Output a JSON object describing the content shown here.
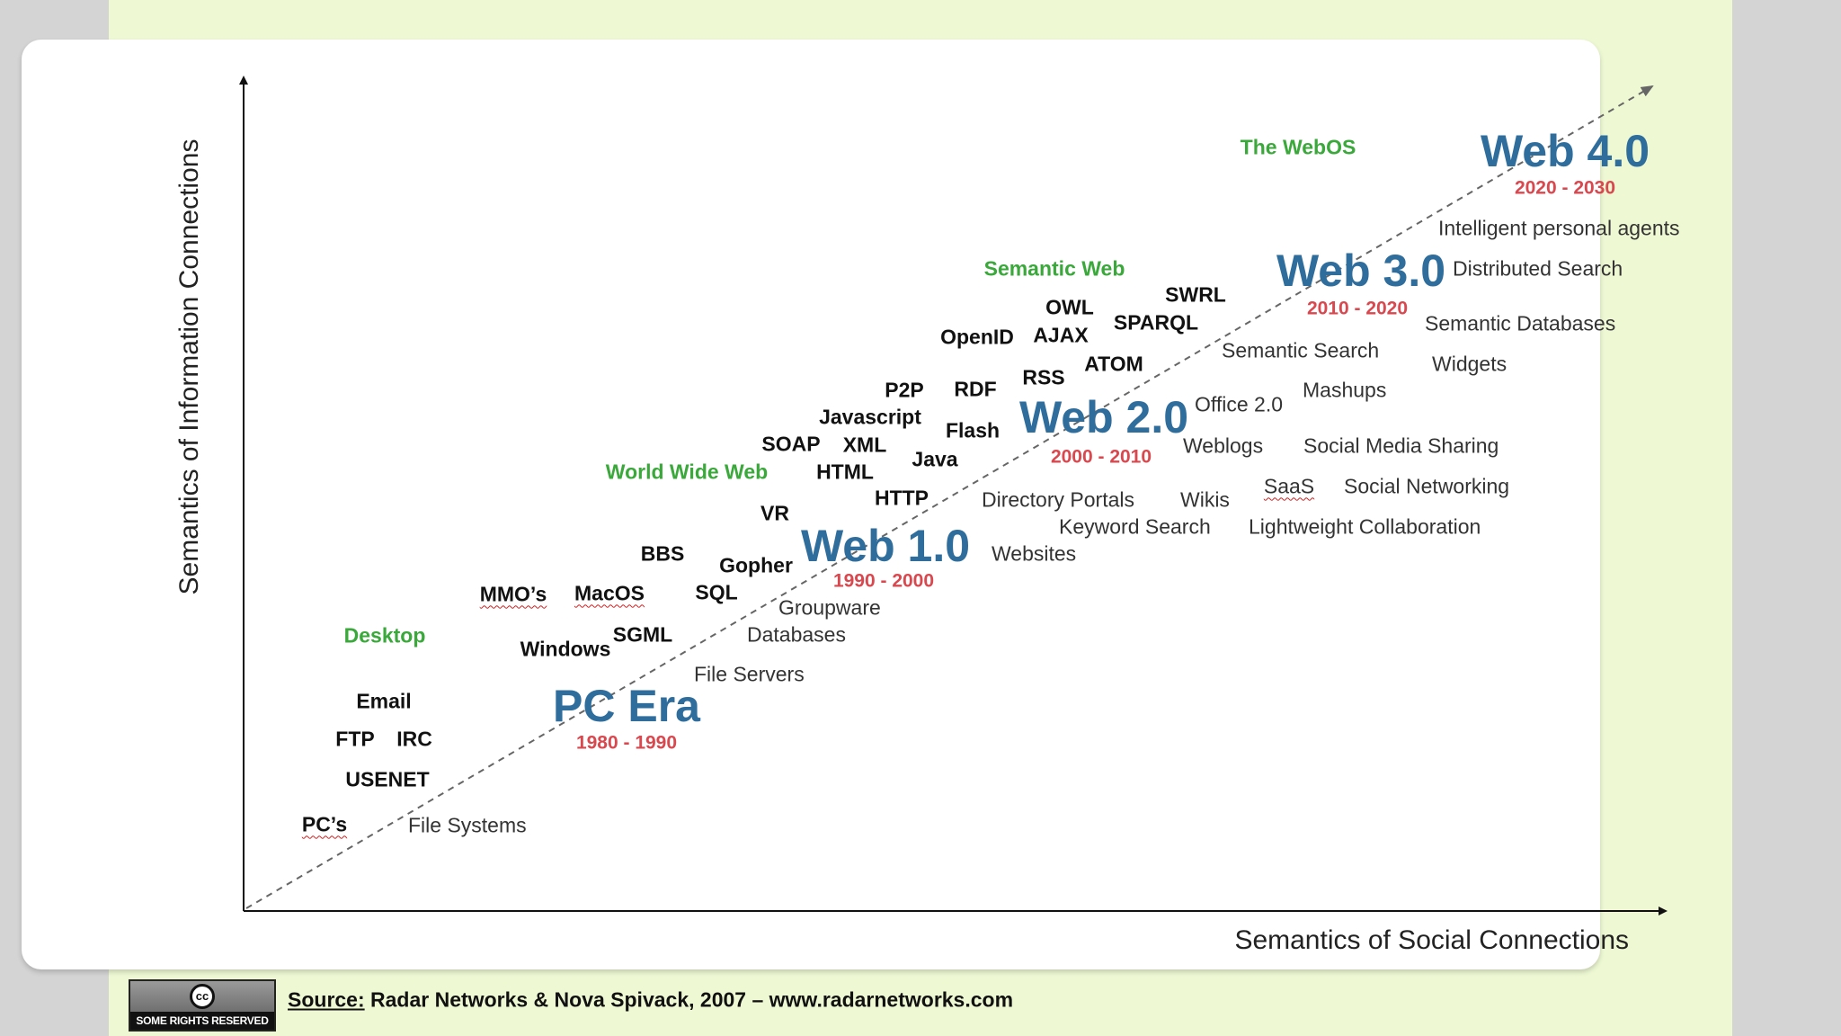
{
  "axes": {
    "y_label": "Semantics of Information Connections",
    "x_label": "Semantics of Social Connections"
  },
  "labels": [
    {
      "id": "web40",
      "text": "Web 4.0",
      "cat": "era"
    },
    {
      "id": "web40-years",
      "text": "2020 - 2030",
      "cat": "years"
    },
    {
      "id": "webos",
      "text": "The WebOS",
      "cat": "category"
    },
    {
      "id": "intelligent-agents",
      "text": "Intelligent personal agents",
      "cat": "service"
    },
    {
      "id": "web30",
      "text": "Web 3.0",
      "cat": "era"
    },
    {
      "id": "web30-years",
      "text": "2010 - 2020",
      "cat": "years"
    },
    {
      "id": "distributed-search",
      "text": "Distributed Search",
      "cat": "service"
    },
    {
      "id": "semantic-web",
      "text": "Semantic Web",
      "cat": "category"
    },
    {
      "id": "swrl",
      "text": "SWRL",
      "cat": "tech"
    },
    {
      "id": "owl",
      "text": "OWL",
      "cat": "tech"
    },
    {
      "id": "sparql",
      "text": "SPARQL",
      "cat": "tech"
    },
    {
      "id": "semantic-databases",
      "text": "Semantic Databases",
      "cat": "service"
    },
    {
      "id": "openid",
      "text": "OpenID",
      "cat": "tech"
    },
    {
      "id": "ajax",
      "text": "AJAX",
      "cat": "tech"
    },
    {
      "id": "semantic-search",
      "text": "Semantic Search",
      "cat": "service"
    },
    {
      "id": "atom",
      "text": "ATOM",
      "cat": "tech"
    },
    {
      "id": "widgets",
      "text": "Widgets",
      "cat": "service"
    },
    {
      "id": "p2p",
      "text": "P2P",
      "cat": "tech"
    },
    {
      "id": "rdf",
      "text": "RDF",
      "cat": "tech"
    },
    {
      "id": "rss",
      "text": "RSS",
      "cat": "tech"
    },
    {
      "id": "mashups",
      "text": "Mashups",
      "cat": "service"
    },
    {
      "id": "web20",
      "text": "Web 2.0",
      "cat": "era"
    },
    {
      "id": "web20-years",
      "text": "2000 - 2010",
      "cat": "years"
    },
    {
      "id": "office20",
      "text": "Office 2.0",
      "cat": "service"
    },
    {
      "id": "javascript",
      "text": "Javascript",
      "cat": "tech"
    },
    {
      "id": "flash",
      "text": "Flash",
      "cat": "tech"
    },
    {
      "id": "soap",
      "text": "SOAP",
      "cat": "tech"
    },
    {
      "id": "xml",
      "text": "XML",
      "cat": "tech"
    },
    {
      "id": "weblogs",
      "text": "Weblogs",
      "cat": "service"
    },
    {
      "id": "social-media-sharing",
      "text": "Social Media Sharing",
      "cat": "service"
    },
    {
      "id": "java",
      "text": "Java",
      "cat": "tech"
    },
    {
      "id": "www",
      "text": "World Wide Web",
      "cat": "category"
    },
    {
      "id": "html",
      "text": "HTML",
      "cat": "tech"
    },
    {
      "id": "saas",
      "text": "SaaS",
      "cat": "service",
      "squig": true
    },
    {
      "id": "social-networking",
      "text": "Social Networking",
      "cat": "service"
    },
    {
      "id": "http",
      "text": "HTTP",
      "cat": "tech"
    },
    {
      "id": "directory-portals",
      "text": "Directory Portals",
      "cat": "service"
    },
    {
      "id": "wikis",
      "text": "Wikis",
      "cat": "service"
    },
    {
      "id": "vr",
      "text": "VR",
      "cat": "tech"
    },
    {
      "id": "keyword-search",
      "text": "Keyword Search",
      "cat": "service"
    },
    {
      "id": "lightweight-collaboration",
      "text": "Lightweight Collaboration",
      "cat": "service"
    },
    {
      "id": "web10",
      "text": "Web 1.0",
      "cat": "era"
    },
    {
      "id": "web10-years",
      "text": "1990 - 2000",
      "cat": "years"
    },
    {
      "id": "websites",
      "text": "Websites",
      "cat": "service"
    },
    {
      "id": "bbs",
      "text": "BBS",
      "cat": "tech"
    },
    {
      "id": "gopher",
      "text": "Gopher",
      "cat": "tech"
    },
    {
      "id": "mmos",
      "text": "MMO’s",
      "cat": "tech",
      "squig": true
    },
    {
      "id": "macos",
      "text": "MacOS",
      "cat": "tech",
      "squig": true
    },
    {
      "id": "sql",
      "text": "SQL",
      "cat": "tech"
    },
    {
      "id": "groupware",
      "text": "Groupware",
      "cat": "service"
    },
    {
      "id": "desktop",
      "text": "Desktop",
      "cat": "category"
    },
    {
      "id": "sgml",
      "text": "SGML",
      "cat": "tech"
    },
    {
      "id": "windows",
      "text": "Windows",
      "cat": "tech"
    },
    {
      "id": "databases",
      "text": "Databases",
      "cat": "service"
    },
    {
      "id": "file-servers",
      "text": "File Servers",
      "cat": "service"
    },
    {
      "id": "email",
      "text": "Email",
      "cat": "tech"
    },
    {
      "id": "pc-era",
      "text": "PC Era",
      "cat": "era"
    },
    {
      "id": "ftp",
      "text": "FTP",
      "cat": "tech"
    },
    {
      "id": "irc",
      "text": "IRC",
      "cat": "tech"
    },
    {
      "id": "pc-era-years",
      "text": "1980 - 1990",
      "cat": "years"
    },
    {
      "id": "usenet",
      "text": "USENET",
      "cat": "tech"
    },
    {
      "id": "pcs",
      "text": "PC’s",
      "cat": "tech",
      "squig": true
    },
    {
      "id": "file-systems",
      "text": "File Systems",
      "cat": "service"
    }
  ],
  "colors": {
    "era": "#2f6d9c",
    "years": "#d9484e",
    "category": "#3aa83a",
    "slide_bg": "#eef9d4"
  },
  "license_badge": {
    "symbol": "cc",
    "text": "SOME RIGHTS RESERVED"
  },
  "source": {
    "label": "Source:",
    "text": " Radar Networks & Nova Spivack, 2007 – www.radarnetworks.com"
  }
}
